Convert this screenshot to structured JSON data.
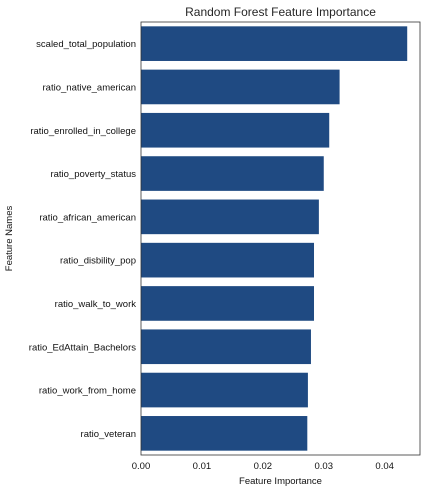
{
  "chart_data": {
    "type": "bar",
    "orientation": "horizontal",
    "title": "Random Forest Feature Importance",
    "xlabel": "Feature Importance",
    "ylabel": "Feature Names",
    "categories": [
      "scaled_total_population",
      "ratio_native_american",
      "ratio_enrolled_in_college",
      "ratio_poverty_status",
      "ratio_african_american",
      "ratio_disbility_pop",
      "ratio_walk_to_work",
      "ratio_EdAttain_Bachelors",
      "ratio_work_from_home",
      "ratio_veteran"
    ],
    "values": [
      0.0437,
      0.0326,
      0.0309,
      0.03,
      0.0292,
      0.0284,
      0.0284,
      0.0279,
      0.0274,
      0.0273
    ],
    "xlim": [
      0,
      0.0458
    ],
    "xticks": [
      0,
      0.01,
      0.02,
      0.03,
      0.04
    ],
    "xtick_labels": [
      "0.00",
      "0.01",
      "0.02",
      "0.03",
      "0.04"
    ],
    "bar_color": "#1f4a82",
    "grid": false,
    "legend": "none"
  }
}
